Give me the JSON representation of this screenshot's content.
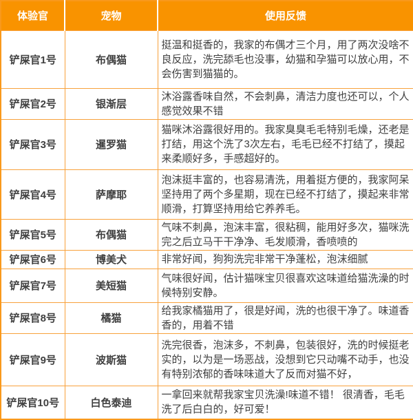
{
  "table": {
    "columns": [
      {
        "key": "officer",
        "label": "体验官"
      },
      {
        "key": "pet",
        "label": "宠物"
      },
      {
        "key": "feedback",
        "label": "使用反馈"
      }
    ],
    "rows": [
      {
        "officer": "铲屎官1号",
        "pet": "布偶猫",
        "feedback": "挺温和挺香的，我家的布偶才三个月，用了两次没啥不良反应，洗完舔毛也没事，幼猫和孕猫可以放心用，不会伤害到猫猫的。"
      },
      {
        "officer": "铲屎官2号",
        "pet": "银渐层",
        "feedback": "沐浴露香味自然，不会刺鼻，清洁力度也还可以，个人感觉效果不错"
      },
      {
        "officer": "铲屎官3号",
        "pet": "暹罗猫",
        "feedback": "猫咪沐浴露很好用的。我家臭臭毛毛特别毛燥，还老是打结，用这个洗了3次左右，毛毛已经不打结了，摸起来柔顺好多，手感超好的。"
      },
      {
        "officer": "铲屎官4号",
        "pet": "萨摩耶",
        "feedback": "泡沫挺丰富的，也容易清洗，用着挺方便的，我家阿呆坚持用了两个多星期，现在已经不打结了，摸起来非常顺滑，打算坚持用给它养养毛。"
      },
      {
        "officer": "铲屎官5号",
        "pet": "布偶猫",
        "feedback": "气味不刺鼻，泡沫丰富，很粘稠，能用好多次，猫咪洗完之后立马干干净净、毛发顺滑，香喷喷的"
      },
      {
        "officer": "铲屎官6号",
        "pet": "博美犬",
        "feedback": "非常好闻，狗狗洗完非常干净蓬松，泡沫细腻"
      },
      {
        "officer": "铲屎官7号",
        "pet": "美短猫",
        "feedback": "气味很好闻，估计猫咪宝贝很喜欢这味道给猫洗澡的时候特别安静。"
      },
      {
        "officer": "铲屎官8号",
        "pet": "橘猫",
        "feedback": "给我家橘猫用了，很是好闻，洗的也很干净了。味道香香的，用着不错"
      },
      {
        "officer": "铲屎官9号",
        "pet": "波斯猫",
        "feedback": "洗完很香，泡沫多，不刺鼻，包装很好，洗的时候挺老实的，以为是一场恶战，没想到它只动嘴不动手，也没有特别浓郁的香味味道大了反而对猫不好，"
      },
      {
        "officer": "铲屎官10号",
        "pet": "白色泰迪",
        "feedback": "一拿回来就帮我家宝贝洗澡!味道不错！ 很清香，毛毛洗了后白白的，好可爱！"
      }
    ]
  },
  "colors": {
    "header_bg": "#f99300",
    "border": "#f8a13b",
    "header_text": "#ffffff",
    "body_text": "#404040"
  }
}
